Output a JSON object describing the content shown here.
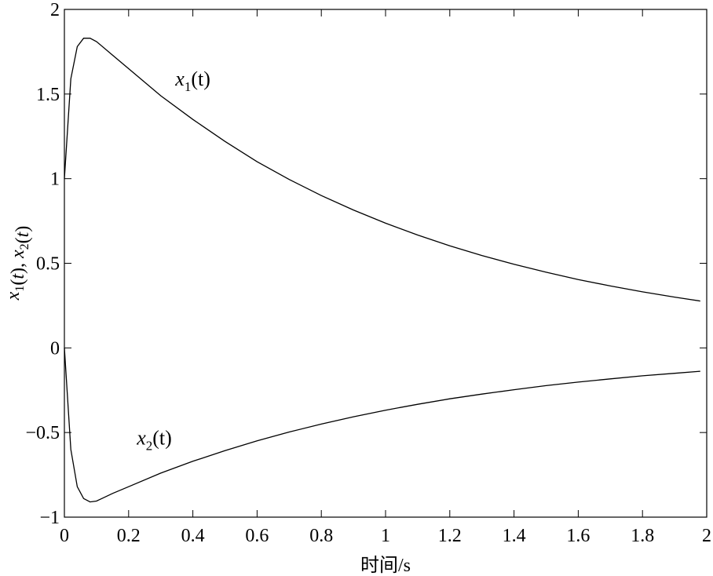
{
  "chart_data": {
    "type": "line",
    "title": "",
    "xlabel": "时间/s",
    "ylabel": "x1(t), x2(t)",
    "xlim": [
      0,
      2
    ],
    "ylim": [
      -1,
      2
    ],
    "xticks": [
      0,
      0.2,
      0.4,
      0.6,
      0.8,
      1,
      1.2,
      1.4,
      1.6,
      1.8,
      2
    ],
    "xtick_labels": [
      "0",
      "0.2",
      "0.4",
      "0.6",
      "0.8",
      "1",
      "1.2",
      "1.4",
      "1.6",
      "1.8",
      "2"
    ],
    "yticks": [
      -1,
      -0.5,
      0,
      0.5,
      1,
      1.5,
      2
    ],
    "ytick_labels": [
      "−1",
      "−0.5",
      "0",
      "0.5",
      "1",
      "1.5",
      "2"
    ],
    "grid": false,
    "box": true,
    "line_color": "#000000",
    "x": [
      0,
      0.02,
      0.04,
      0.06,
      0.08,
      0.1,
      0.15,
      0.2,
      0.3,
      0.4,
      0.5,
      0.6,
      0.7,
      0.8,
      0.9,
      1.0,
      1.1,
      1.2,
      1.3,
      1.4,
      1.5,
      1.6,
      1.7,
      1.8,
      1.9,
      1.98
    ],
    "series": [
      {
        "name": "x1(t)",
        "values": [
          1.0,
          1.59,
          1.78,
          1.83,
          1.83,
          1.81,
          1.73,
          1.65,
          1.49,
          1.35,
          1.22,
          1.1,
          0.995,
          0.9,
          0.815,
          0.737,
          0.667,
          0.603,
          0.546,
          0.494,
          0.447,
          0.404,
          0.366,
          0.331,
          0.3,
          0.277
        ]
      },
      {
        "name": "x2(t)",
        "values": [
          0,
          -0.6,
          -0.82,
          -0.89,
          -0.91,
          -0.905,
          -0.86,
          -0.82,
          -0.74,
          -0.67,
          -0.607,
          -0.549,
          -0.497,
          -0.45,
          -0.407,
          -0.368,
          -0.333,
          -0.301,
          -0.273,
          -0.247,
          -0.223,
          -0.202,
          -0.183,
          -0.165,
          -0.15,
          -0.138
        ]
      }
    ],
    "annotations": [
      {
        "series": "x1(t)",
        "var": "x",
        "sub": "1",
        "arg": "(t)",
        "x": 0.4,
        "y": 1.55
      },
      {
        "series": "x2(t)",
        "var": "x",
        "sub": "2",
        "arg": "(t)",
        "x": 0.28,
        "y": -0.57
      }
    ]
  }
}
